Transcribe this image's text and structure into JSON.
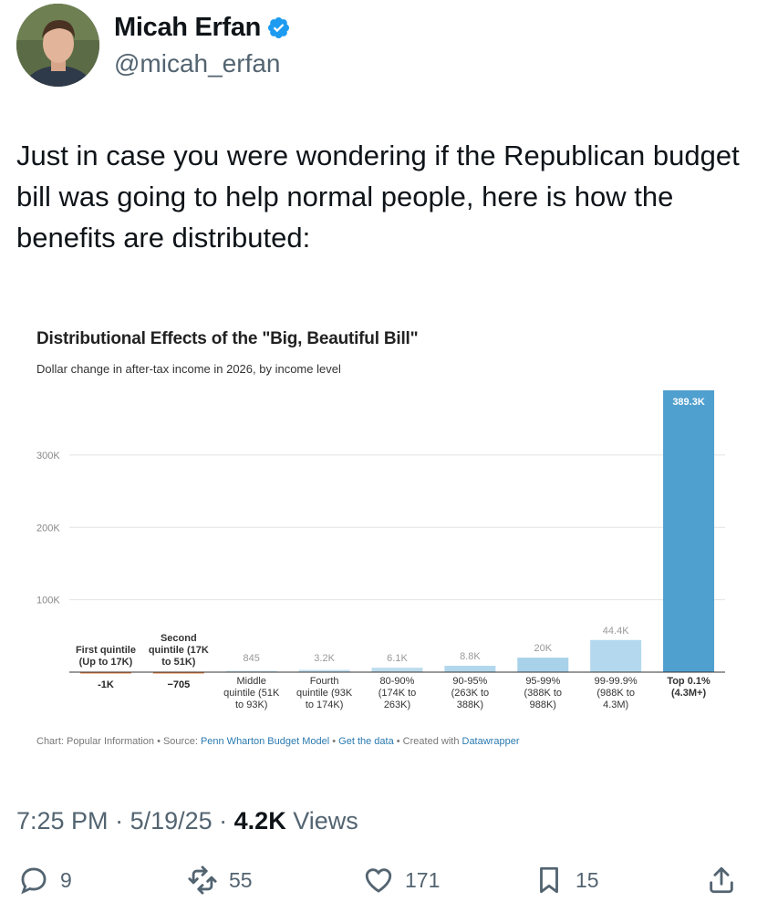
{
  "author": {
    "name": "Micah Erfan",
    "handle": "@micah_erfan",
    "verified_icon": "verified-badge-icon",
    "accent": "#1d9bf0"
  },
  "tweet": {
    "text": "Just in case you were wondering if the Republican budget bill was going to help normal people, here is how the benefits are distributed:"
  },
  "chart_data": {
    "type": "bar",
    "title": "Distributional Effects of the \"Big, Beautiful Bill\"",
    "subtitle": "Dollar change in after-tax income in 2026, by income level",
    "ylim": [
      0,
      389300
    ],
    "yticks": [
      {
        "value": 100000,
        "label": "100K"
      },
      {
        "value": 200000,
        "label": "200K"
      },
      {
        "value": 300000,
        "label": "300K"
      }
    ],
    "grid": true,
    "categories": [
      {
        "label": [
          "First quintile",
          "(Up to 17K)"
        ],
        "position": "above"
      },
      {
        "label": [
          "Second",
          "quintile (17K",
          "to 51K)"
        ],
        "position": "above"
      },
      {
        "label": [
          "Middle",
          "quintile (51K",
          "to 93K)"
        ],
        "position": "below"
      },
      {
        "label": [
          "Fourth",
          "quintile (93K",
          "to 174K)"
        ],
        "position": "below"
      },
      {
        "label": [
          "80-90%",
          "(174K to",
          "263K)"
        ],
        "position": "below"
      },
      {
        "label": [
          "90-95%",
          "(263K to",
          "388K)"
        ],
        "position": "below"
      },
      {
        "label": [
          "95-99%",
          "(388K to",
          "988K)"
        ],
        "position": "below"
      },
      {
        "label": [
          "99-99.9%",
          "(988K to",
          "4.3M)"
        ],
        "position": "below"
      },
      {
        "label": [
          "Top 0.1%",
          "(4.3M+)"
        ],
        "position": "below"
      }
    ],
    "values": [
      -1000,
      -705,
      845,
      3200,
      6100,
      8800,
      20000,
      44400,
      389300
    ],
    "value_labels": [
      "-1K",
      "−705",
      "845",
      "3.2K",
      "6.1K",
      "8.8K",
      "20K",
      "44.4K",
      "389.3K"
    ],
    "colors": [
      "#e07b39",
      "#e07b39",
      "#cfe6f3",
      "#c6e1f1",
      "#bcdcee",
      "#b2d7ec",
      "#a8d1ea",
      "#b4d9ee",
      "#4f9fcf"
    ],
    "footer": {
      "prefix": "Chart: Popular Information • Source: ",
      "source": "Penn Wharton Budget Model",
      "sep1": " • ",
      "data_link": "Get the data",
      "suffix": " • Created with ",
      "tool": "Datawrapper"
    }
  },
  "meta": {
    "time": "7:25 PM",
    "sep": " · ",
    "date": "5/19/25",
    "sep2": " · ",
    "views_count": "4.2K",
    "views_label": " Views"
  },
  "actions": {
    "replies": "9",
    "reposts": "55",
    "likes": "171",
    "bookmarks": "15"
  }
}
